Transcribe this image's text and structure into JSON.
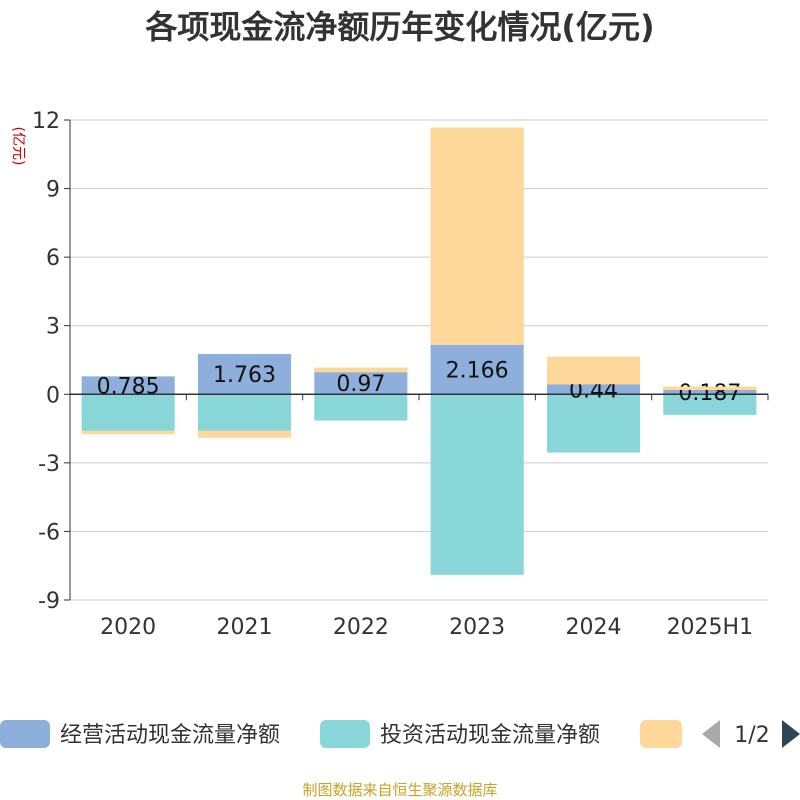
{
  "chart_data": {
    "type": "bar",
    "stacked": true,
    "title": "各项现金流净额历年变化情况(亿元)",
    "ylabel": "(亿元)",
    "ylim": [
      -9,
      12
    ],
    "yticks": [
      12,
      9,
      6,
      3,
      0,
      -3,
      -6,
      -9
    ],
    "ytick_labels": [
      "12",
      "9",
      "6",
      "3",
      "0",
      "-3",
      "-6",
      "-9"
    ],
    "grid": true,
    "categories": [
      "2020",
      "2021",
      "2022",
      "2023",
      "2024",
      "2025H1"
    ],
    "series": [
      {
        "name": "经营活动现金流量净额",
        "color": "#8eaedc",
        "values": [
          0.785,
          1.763,
          0.97,
          2.166,
          0.44,
          0.187
        ],
        "labels": [
          "0.785",
          "1.763",
          "0.97",
          "2.166",
          "0.44",
          "0.187"
        ]
      },
      {
        "name": "投资活动现金流量净额",
        "color": "#88d6d8",
        "values": [
          -1.6,
          -1.6,
          -1.15,
          -7.9,
          -2.55,
          -0.9
        ]
      },
      {
        "name": "",
        "color": "#fdd89a",
        "values": [
          -0.15,
          -0.3,
          0.2,
          9.5,
          1.2,
          0.15
        ]
      }
    ],
    "legend": {
      "placement": "bottom",
      "page": "1/2"
    }
  },
  "source_text": "制图数据来自恒生聚源数据库",
  "colors": {
    "title": "#333333",
    "ylabel": "#cc0000",
    "source": "#c9a227",
    "grid": "#cccccc",
    "axis": "#333333",
    "pager_prev": "#aaaaaa",
    "pager_next": "#2f4554"
  }
}
